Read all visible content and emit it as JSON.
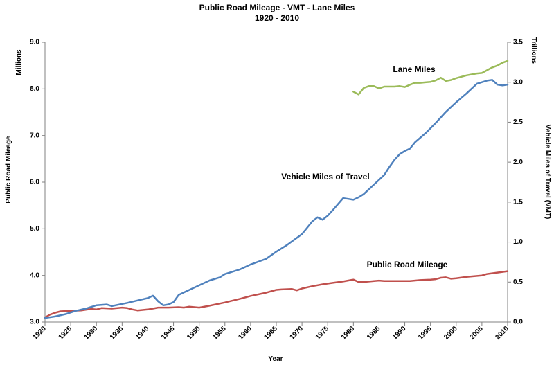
{
  "chart_data": {
    "type": "line",
    "title": "Public Road Mileage - VMT - Lane Miles",
    "subtitle": "1920 - 2010",
    "xlabel": "Year",
    "ylabel_left": "Public Road Mileage",
    "ylabel_right": "Vehicle Miles of Travel (VMT)",
    "y_left_unit": "Millions",
    "y_right_unit": "Trillions",
    "xlim": [
      1920,
      2010
    ],
    "ylim_left": [
      3.0,
      9.0
    ],
    "ylim_right": [
      0.0,
      3.5
    ],
    "x_ticks": [
      "1920",
      "1925",
      "1930",
      "1935",
      "1940",
      "1945",
      "1950",
      "1955",
      "1960",
      "1965",
      "1970",
      "1975",
      "1980",
      "1985",
      "1990",
      "1995",
      "2000",
      "2005",
      "2010"
    ],
    "y_left_ticks": [
      "3.0",
      "4.0",
      "5.0",
      "6.0",
      "7.0",
      "8.0",
      "9.0"
    ],
    "y_right_ticks": [
      "0.0",
      "0.5",
      "1.0",
      "1.5",
      "2.0",
      "2.5",
      "3.0",
      "3.5"
    ],
    "grid": false,
    "series": [
      {
        "name": "Public Road Mileage",
        "axis": "left",
        "color": "#c0504d",
        "x": [
          1920,
          1921,
          1922,
          1923,
          1925,
          1927,
          1929,
          1930,
          1931,
          1933,
          1935,
          1936,
          1937,
          1938,
          1940,
          1941,
          1942,
          1944,
          1946,
          1947,
          1948,
          1950,
          1952,
          1955,
          1958,
          1960,
          1963,
          1965,
          1966,
          1968,
          1969,
          1970,
          1972,
          1974,
          1976,
          1978,
          1980,
          1981,
          1982,
          1984,
          1985,
          1986,
          1988,
          1990,
          1991,
          1993,
          1995,
          1996,
          1997,
          1998,
          1999,
          2000,
          2002,
          2005,
          2006,
          2008,
          2010
        ],
        "values": [
          3.1,
          3.16,
          3.2,
          3.23,
          3.24,
          3.25,
          3.28,
          3.27,
          3.3,
          3.29,
          3.31,
          3.3,
          3.27,
          3.25,
          3.27,
          3.29,
          3.31,
          3.31,
          3.32,
          3.31,
          3.33,
          3.31,
          3.35,
          3.42,
          3.5,
          3.56,
          3.63,
          3.69,
          3.7,
          3.71,
          3.68,
          3.72,
          3.77,
          3.81,
          3.84,
          3.87,
          3.91,
          3.86,
          3.86,
          3.88,
          3.89,
          3.88,
          3.88,
          3.88,
          3.88,
          3.9,
          3.91,
          3.92,
          3.95,
          3.96,
          3.93,
          3.94,
          3.97,
          4.0,
          4.03,
          4.06,
          4.09
        ]
      },
      {
        "name": "Vehicle Miles of Travel",
        "axis": "right",
        "color": "#4f81bd",
        "x": [
          1920,
          1922,
          1924,
          1926,
          1928,
          1930,
          1932,
          1933,
          1936,
          1938,
          1940,
          1941,
          1942,
          1943,
          1944,
          1945,
          1946,
          1947,
          1950,
          1952,
          1954,
          1955,
          1956,
          1958,
          1960,
          1963,
          1965,
          1967,
          1970,
          1972,
          1973,
          1974,
          1975,
          1976,
          1978,
          1979,
          1980,
          1981,
          1982,
          1984,
          1986,
          1987,
          1988,
          1989,
          1990,
          1991,
          1992,
          1994,
          1996,
          1997,
          1998,
          2000,
          2002,
          2004,
          2005,
          2006,
          2007,
          2008,
          2009,
          2010
        ],
        "values": [
          0.05,
          0.07,
          0.1,
          0.14,
          0.17,
          0.21,
          0.22,
          0.2,
          0.24,
          0.27,
          0.3,
          0.33,
          0.26,
          0.21,
          0.22,
          0.25,
          0.34,
          0.37,
          0.46,
          0.52,
          0.56,
          0.6,
          0.62,
          0.66,
          0.72,
          0.79,
          0.88,
          0.96,
          1.1,
          1.26,
          1.31,
          1.28,
          1.33,
          1.4,
          1.55,
          1.54,
          1.53,
          1.56,
          1.6,
          1.72,
          1.84,
          1.94,
          2.03,
          2.1,
          2.14,
          2.17,
          2.25,
          2.36,
          2.49,
          2.56,
          2.63,
          2.75,
          2.86,
          2.98,
          3.0,
          3.02,
          3.03,
          2.97,
          2.96,
          2.97
        ]
      },
      {
        "name": "Lane Miles",
        "axis": "left",
        "color": "#9bbb59",
        "x": [
          1980,
          1981,
          1982,
          1983,
          1984,
          1985,
          1986,
          1987,
          1988,
          1989,
          1990,
          1991,
          1992,
          1993,
          1994,
          1995,
          1996,
          1997,
          1998,
          1999,
          2000,
          2001,
          2002,
          2003,
          2004,
          2005,
          2006,
          2007,
          2008,
          2009,
          2010
        ],
        "values": [
          7.94,
          7.88,
          8.02,
          8.06,
          8.06,
          8.01,
          8.05,
          8.05,
          8.05,
          8.06,
          8.04,
          8.09,
          8.13,
          8.13,
          8.14,
          8.15,
          8.18,
          8.24,
          8.17,
          8.19,
          8.23,
          8.26,
          8.29,
          8.31,
          8.33,
          8.34,
          8.4,
          8.46,
          8.5,
          8.56,
          8.6
        ]
      }
    ]
  }
}
